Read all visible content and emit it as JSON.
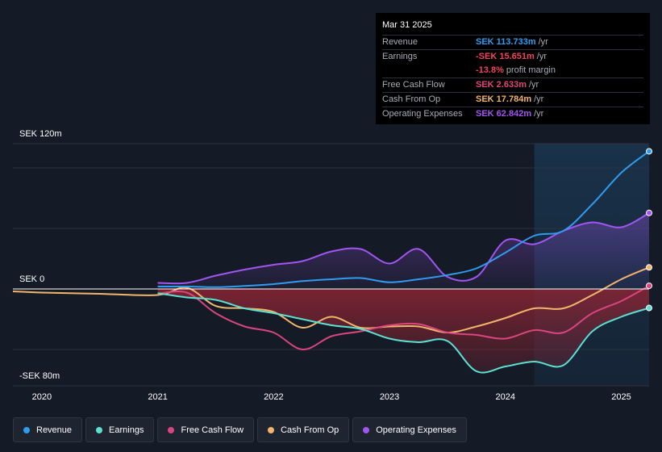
{
  "tooltip": {
    "date": "Mar 31 2025",
    "rows": [
      {
        "label": "Revenue",
        "value": "SEK 113.733m",
        "unit": "/yr",
        "color": "#2f9cf0"
      },
      {
        "label": "Earnings",
        "value": "-SEK 15.651m",
        "unit": "/yr",
        "color": "#f0435a"
      },
      {
        "label": "",
        "value": "-13.8%",
        "unit": "profit margin",
        "color": "#f0435a"
      },
      {
        "label": "Free Cash Flow",
        "value": "SEK 2.633m",
        "unit": "/yr",
        "color": "#e0447d"
      },
      {
        "label": "Cash From Op",
        "value": "SEK 17.784m",
        "unit": "/yr",
        "color": "#f2b56b"
      },
      {
        "label": "Operating Expenses",
        "value": "SEK 62.842m",
        "unit": "/yr",
        "color": "#a155f1"
      }
    ]
  },
  "colors": {
    "revenue": "#2f9cf0",
    "earnings": "#5ce0d2",
    "free_cash_flow": "#d9457f",
    "cash_from_op": "#f2b56b",
    "operating_expenses": "#a155f1",
    "negative_fill": "#8a2433",
    "background": "#151b26"
  },
  "legend": [
    {
      "label": "Revenue",
      "color": "#2f9cf0"
    },
    {
      "label": "Earnings",
      "color": "#5ce0d2"
    },
    {
      "label": "Free Cash Flow",
      "color": "#d9457f"
    },
    {
      "label": "Cash From Op",
      "color": "#f2b56b"
    },
    {
      "label": "Operating Expenses",
      "color": "#a155f1"
    }
  ],
  "chart_data": {
    "type": "line",
    "title": "",
    "xlabel": "",
    "ylabel": "",
    "y_axis_labels": {
      "top": "SEK 120m",
      "zero": "SEK 0",
      "bottom": "-SEK 80m"
    },
    "ylim": [
      -80,
      120
    ],
    "xlim": [
      2019.75,
      2025.24
    ],
    "x_ticks": [
      {
        "value": 2020,
        "label": "2020"
      },
      {
        "value": 2021,
        "label": "2021"
      },
      {
        "value": 2022,
        "label": "2022"
      },
      {
        "value": 2023,
        "label": "2023"
      },
      {
        "value": 2024,
        "label": "2024"
      },
      {
        "value": 2025,
        "label": "2025"
      }
    ],
    "highlight_from": 2024.25,
    "series": [
      {
        "name": "Revenue",
        "key": "revenue",
        "points": [
          [
            2021.0,
            2
          ],
          [
            2021.25,
            2
          ],
          [
            2021.5,
            1.5
          ],
          [
            2021.75,
            2.5
          ],
          [
            2022.0,
            4
          ],
          [
            2022.25,
            6.5
          ],
          [
            2022.5,
            8
          ],
          [
            2022.75,
            9
          ],
          [
            2023.0,
            5.5
          ],
          [
            2023.25,
            8
          ],
          [
            2023.5,
            11.5
          ],
          [
            2023.75,
            17
          ],
          [
            2024.0,
            30
          ],
          [
            2024.25,
            44
          ],
          [
            2024.5,
            48
          ],
          [
            2024.75,
            70
          ],
          [
            2025.0,
            96
          ],
          [
            2025.24,
            113.7
          ]
        ]
      },
      {
        "name": "Earnings",
        "key": "earnings",
        "points": [
          [
            2021.0,
            -3.5
          ],
          [
            2021.25,
            -7
          ],
          [
            2021.5,
            -9
          ],
          [
            2021.75,
            -16
          ],
          [
            2022.0,
            -20
          ],
          [
            2022.25,
            -25
          ],
          [
            2022.5,
            -30
          ],
          [
            2022.75,
            -33
          ],
          [
            2023.0,
            -41
          ],
          [
            2023.25,
            -44
          ],
          [
            2023.5,
            -43
          ],
          [
            2023.75,
            -68
          ],
          [
            2024.0,
            -64
          ],
          [
            2024.25,
            -60
          ],
          [
            2024.5,
            -63
          ],
          [
            2024.75,
            -35
          ],
          [
            2025.0,
            -23
          ],
          [
            2025.24,
            -15.7
          ]
        ]
      },
      {
        "name": "Free Cash Flow",
        "key": "free_cash_flow",
        "points": [
          [
            2021.0,
            -4
          ],
          [
            2021.25,
            -3
          ],
          [
            2021.5,
            -20
          ],
          [
            2021.75,
            -31
          ],
          [
            2022.0,
            -36
          ],
          [
            2022.25,
            -50
          ],
          [
            2022.5,
            -39
          ],
          [
            2022.75,
            -35
          ],
          [
            2023.0,
            -30
          ],
          [
            2023.25,
            -29
          ],
          [
            2023.5,
            -36
          ],
          [
            2023.75,
            -38
          ],
          [
            2024.0,
            -41
          ],
          [
            2024.25,
            -34
          ],
          [
            2024.5,
            -36
          ],
          [
            2024.75,
            -20
          ],
          [
            2025.0,
            -10
          ],
          [
            2025.24,
            2.6
          ]
        ]
      },
      {
        "name": "Cash From Op",
        "key": "cash_from_op",
        "points": [
          [
            2019.75,
            -2
          ],
          [
            2020.0,
            -3
          ],
          [
            2020.5,
            -4
          ],
          [
            2021.0,
            -5
          ],
          [
            2021.25,
            1
          ],
          [
            2021.5,
            -14
          ],
          [
            2021.75,
            -16
          ],
          [
            2022.0,
            -19
          ],
          [
            2022.25,
            -32
          ],
          [
            2022.5,
            -23
          ],
          [
            2022.75,
            -32
          ],
          [
            2023.0,
            -31
          ],
          [
            2023.25,
            -31
          ],
          [
            2023.5,
            -36
          ],
          [
            2023.75,
            -31
          ],
          [
            2024.0,
            -24
          ],
          [
            2024.25,
            -16
          ],
          [
            2024.5,
            -16
          ],
          [
            2024.75,
            -5
          ],
          [
            2025.0,
            8
          ],
          [
            2025.24,
            17.8
          ]
        ]
      },
      {
        "name": "Operating Expenses",
        "key": "operating_expenses",
        "points": [
          [
            2021.0,
            5
          ],
          [
            2021.25,
            5
          ],
          [
            2021.5,
            11
          ],
          [
            2021.75,
            16
          ],
          [
            2022.0,
            20
          ],
          [
            2022.25,
            23
          ],
          [
            2022.5,
            31
          ],
          [
            2022.75,
            33
          ],
          [
            2023.0,
            21
          ],
          [
            2023.25,
            33
          ],
          [
            2023.5,
            10
          ],
          [
            2023.75,
            10
          ],
          [
            2024.0,
            40
          ],
          [
            2024.25,
            37
          ],
          [
            2024.5,
            48
          ],
          [
            2024.75,
            55
          ],
          [
            2025.0,
            51
          ],
          [
            2025.24,
            62.8
          ]
        ]
      }
    ]
  }
}
